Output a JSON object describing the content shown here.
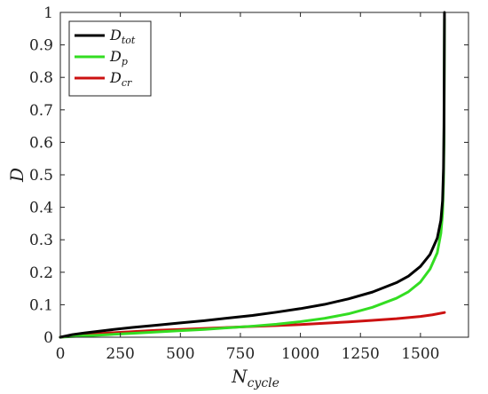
{
  "chart_data": {
    "type": "line",
    "title": "",
    "xlabel": {
      "main": "N",
      "sub": "cycle"
    },
    "ylabel": "D",
    "xlim": [
      0,
      1700
    ],
    "ylim": [
      0,
      1
    ],
    "xticks": [
      0,
      250,
      500,
      750,
      1000,
      1250,
      1500
    ],
    "yticks": [
      0,
      0.1,
      0.2,
      0.3,
      0.4,
      0.5,
      0.6,
      0.7,
      0.8,
      0.9,
      1
    ],
    "x_tick_labels": [
      "0",
      "250",
      "500",
      "750",
      "1000",
      "1250",
      "1500"
    ],
    "y_tick_labels": [
      "0",
      "0.1",
      "0.2",
      "0.3",
      "0.4",
      "0.5",
      "0.6",
      "0.7",
      "0.8",
      "0.9",
      "1"
    ],
    "grid": false,
    "legend_position": "top-left",
    "series": [
      {
        "name": "D_tot",
        "legend_main": "D",
        "legend_sub": "tot",
        "color": "#000000",
        "x": [
          0,
          50,
          100,
          200,
          300,
          400,
          500,
          600,
          700,
          800,
          900,
          1000,
          1100,
          1200,
          1300,
          1400,
          1450,
          1500,
          1540,
          1570,
          1585,
          1592,
          1596,
          1598,
          1600
        ],
        "y": [
          0,
          0.008,
          0.013,
          0.022,
          0.03,
          0.037,
          0.044,
          0.051,
          0.059,
          0.067,
          0.077,
          0.088,
          0.101,
          0.118,
          0.139,
          0.168,
          0.188,
          0.218,
          0.255,
          0.305,
          0.36,
          0.42,
          0.52,
          0.65,
          1.0
        ]
      },
      {
        "name": "D_p",
        "legend_main": "D",
        "legend_sub": "p",
        "color": "#33dd22",
        "x": [
          0,
          100,
          200,
          300,
          400,
          500,
          600,
          700,
          800,
          900,
          1000,
          1100,
          1200,
          1300,
          1400,
          1450,
          1500,
          1540,
          1570,
          1585,
          1592,
          1596,
          1598,
          1600
        ],
        "y": [
          0,
          0.004,
          0.008,
          0.012,
          0.016,
          0.02,
          0.024,
          0.029,
          0.034,
          0.04,
          0.048,
          0.058,
          0.072,
          0.092,
          0.12,
          0.14,
          0.17,
          0.21,
          0.26,
          0.32,
          0.38,
          0.48,
          0.6,
          0.98
        ]
      },
      {
        "name": "D_cr",
        "legend_main": "D",
        "legend_sub": "cr",
        "color": "#cc1111",
        "x": [
          0,
          100,
          200,
          300,
          400,
          500,
          600,
          700,
          800,
          900,
          1000,
          1100,
          1200,
          1300,
          1400,
          1500,
          1550,
          1600
        ],
        "y": [
          0,
          0.008,
          0.013,
          0.017,
          0.021,
          0.024,
          0.027,
          0.03,
          0.033,
          0.036,
          0.039,
          0.043,
          0.047,
          0.052,
          0.057,
          0.064,
          0.069,
          0.076
        ]
      }
    ]
  }
}
